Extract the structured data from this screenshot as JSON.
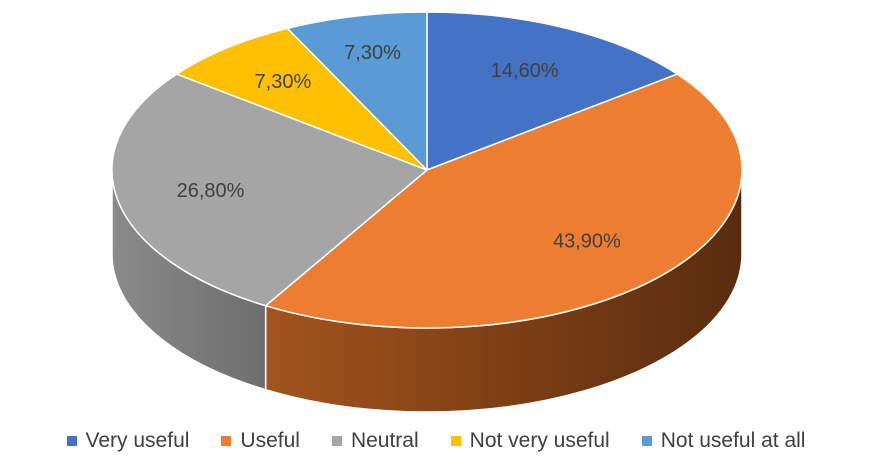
{
  "chart_data": {
    "type": "pie",
    "style": "3d",
    "title": "",
    "categories": [
      "Very useful",
      "Useful",
      "Neutral",
      "Not very useful",
      "Not useful at all"
    ],
    "values": [
      14.6,
      43.9,
      26.8,
      7.3,
      7.3
    ],
    "labels": [
      "14,60%",
      "43,90%",
      "26,80%",
      "7,30%",
      "7,30%"
    ],
    "colors": [
      "#4472C4",
      "#ED7D31",
      "#A5A5A5",
      "#FFC000",
      "#5B9BD5"
    ],
    "legend_position": "bottom"
  }
}
